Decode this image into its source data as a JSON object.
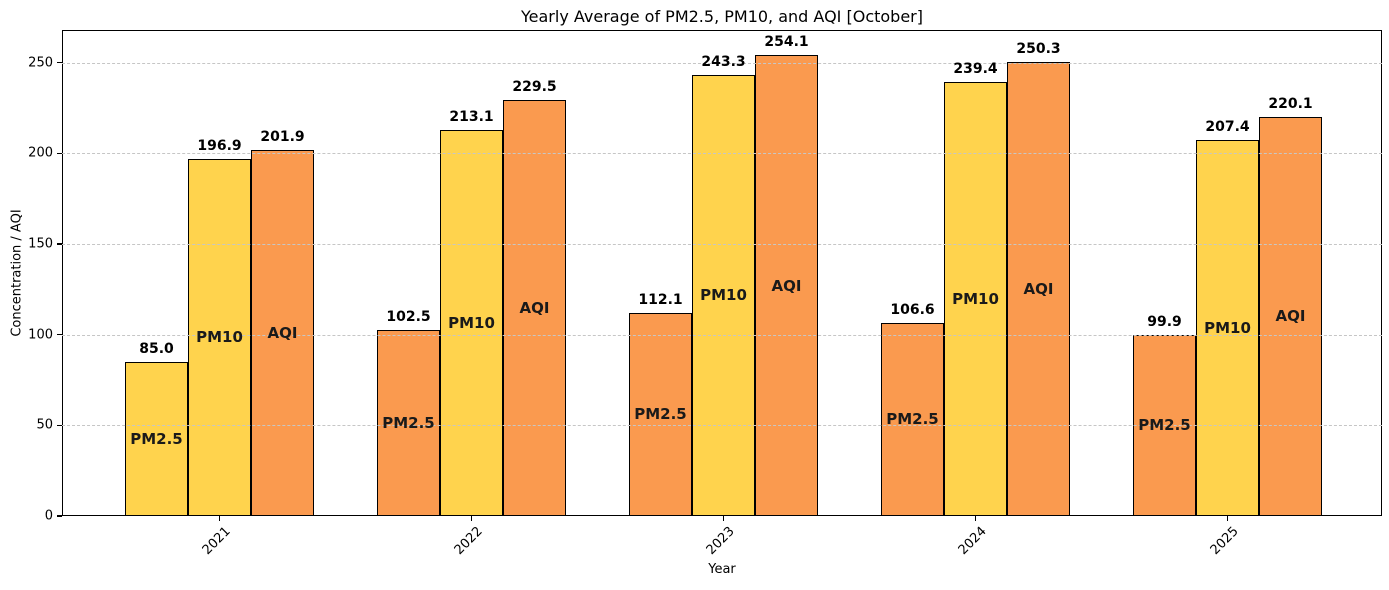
{
  "chart_data": {
    "type": "bar",
    "title": "Yearly Average of PM2.5, PM10, and AQI [October]",
    "xlabel": "Year",
    "ylabel": "Concentration / AQI",
    "categories": [
      "2021",
      "2022",
      "2023",
      "2024",
      "2025"
    ],
    "series": [
      {
        "name": "PM2.5",
        "values": [
          85.0,
          102.5,
          112.1,
          106.6,
          99.9
        ],
        "colors": [
          "#FFD34D",
          "#FA9A4F",
          "#FA9A4F",
          "#FA9A4F",
          "#FA9A4F"
        ]
      },
      {
        "name": "PM10",
        "values": [
          196.9,
          213.1,
          243.3,
          239.4,
          207.4
        ],
        "colors": [
          "#FFD34D",
          "#FFD34D",
          "#FFD34D",
          "#FFD34D",
          "#FFD34D"
        ]
      },
      {
        "name": "AQI",
        "values": [
          201.9,
          229.5,
          254.1,
          250.3,
          220.1
        ],
        "colors": [
          "#FA9A4F",
          "#FA9A4F",
          "#FA9A4F",
          "#FA9A4F",
          "#FA9A4F"
        ]
      }
    ],
    "yticks": [
      0,
      50,
      100,
      150,
      200,
      250
    ],
    "ylim": [
      0,
      268
    ],
    "grid": {
      "axis": "y",
      "style": "dashed",
      "color": "#c6c6c6",
      "above_bars": true
    },
    "legend": "none",
    "bar_edge_color": "#000000",
    "value_label_decimals": 1,
    "bar_label_position": "center",
    "palette": {
      "yellow": "#FFD34D",
      "orange": "#FA9A4F"
    }
  }
}
